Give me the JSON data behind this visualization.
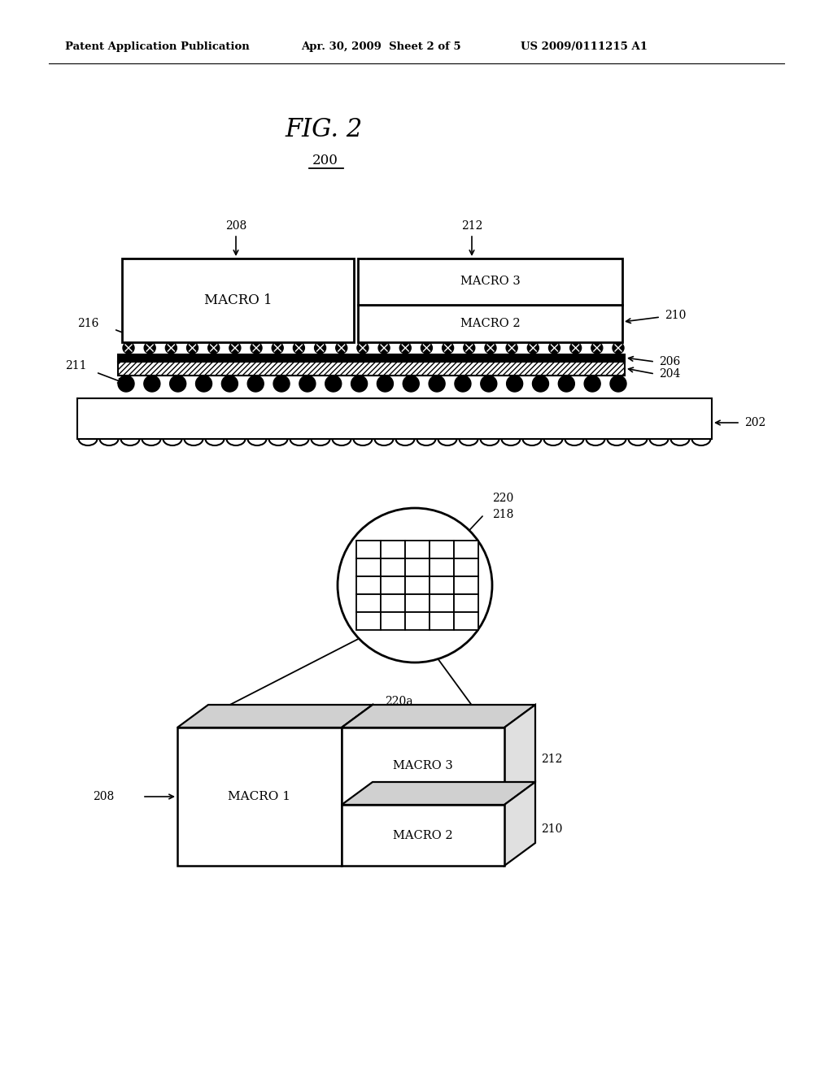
{
  "header_left": "Patent Application Publication",
  "header_mid": "Apr. 30, 2009  Sheet 2 of 5",
  "header_right": "US 2009/0111215 A1",
  "fig_label": "FIG. 2",
  "fig_number": "200",
  "bg_color": "#ffffff",
  "line_color": "#000000"
}
